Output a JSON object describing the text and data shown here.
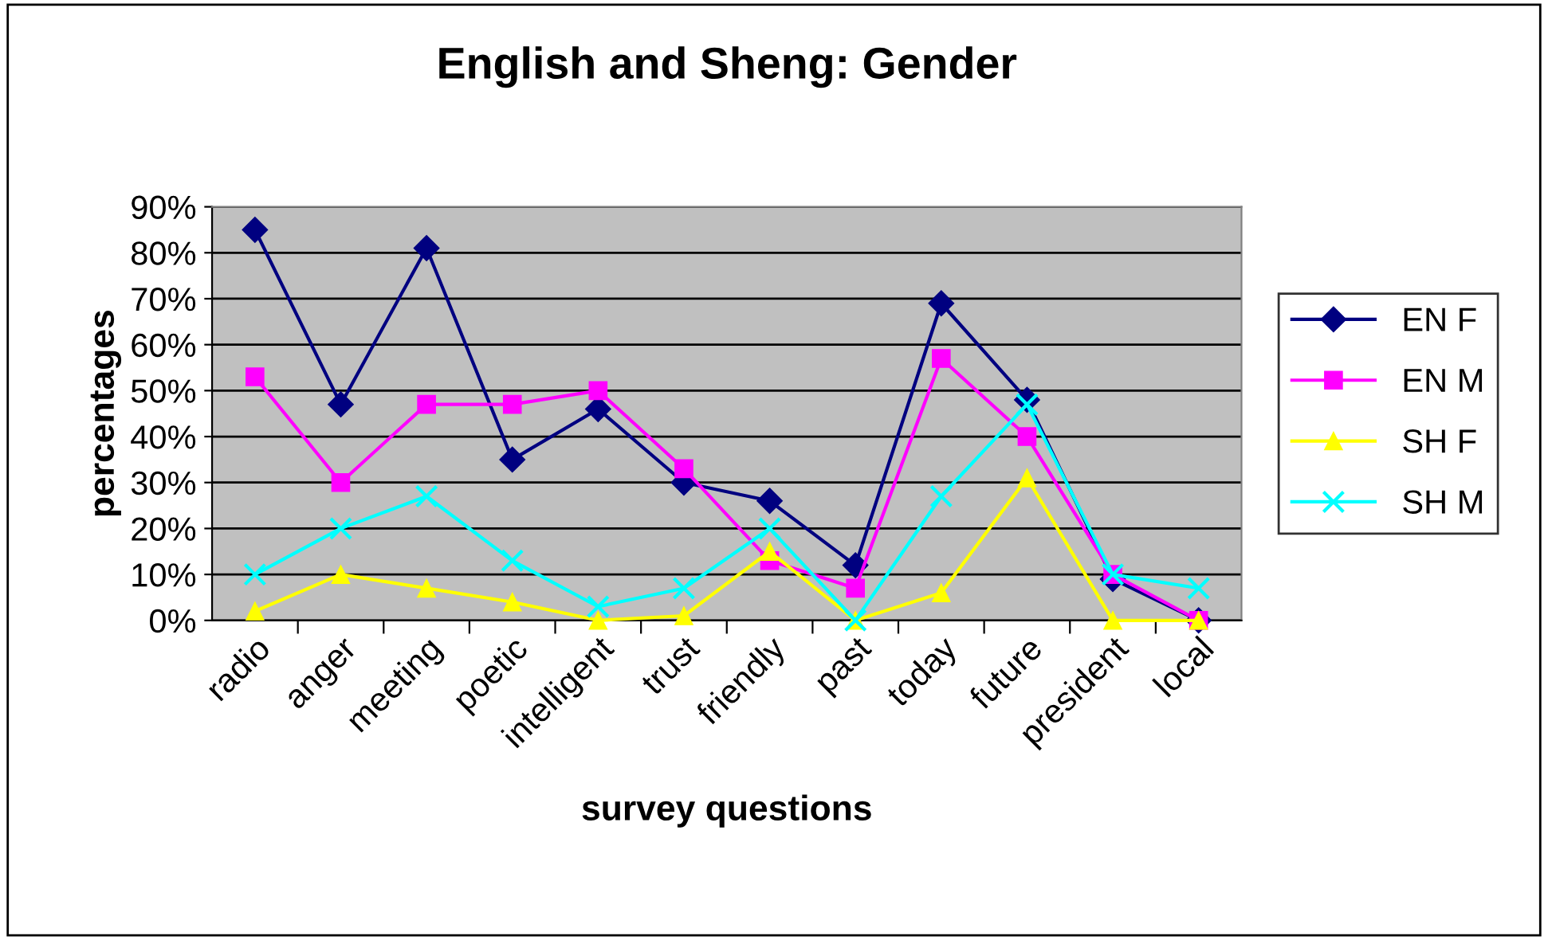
{
  "chart_data": {
    "type": "line",
    "title": "English and Sheng: Gender",
    "xlabel": "survey questions",
    "ylabel": "percentages",
    "categories": [
      "radio",
      "anger",
      "meeting",
      "poetic",
      "intelligent",
      "trust",
      "friendly",
      "past",
      "today",
      "future",
      "president",
      "local"
    ],
    "series": [
      {
        "name": "EN F",
        "color": "#000080",
        "marker": "diamond",
        "values": [
          85,
          47,
          81,
          35,
          46,
          30,
          26,
          12,
          69,
          48,
          9,
          0
        ]
      },
      {
        "name": "EN M",
        "color": "#ff00ff",
        "marker": "square",
        "values": [
          53,
          30,
          47,
          47,
          50,
          33,
          13,
          7,
          57,
          40,
          10,
          0
        ]
      },
      {
        "name": "SH F",
        "color": "#ffff00",
        "marker": "triangle",
        "values": [
          2,
          10,
          7,
          4,
          0,
          1,
          15,
          0,
          6,
          31,
          0,
          0
        ]
      },
      {
        "name": "SH M",
        "color": "#00ffff",
        "marker": "cross",
        "values": [
          10,
          20,
          27,
          13,
          3,
          7,
          20,
          0,
          27,
          47,
          10,
          7
        ]
      }
    ],
    "ylim": [
      0,
      90
    ],
    "yticks": [
      {
        "value": 0,
        "label": "0%"
      },
      {
        "value": 10,
        "label": "10%"
      },
      {
        "value": 20,
        "label": "20%"
      },
      {
        "value": 30,
        "label": "30%"
      },
      {
        "value": 40,
        "label": "40%"
      },
      {
        "value": 50,
        "label": "50%"
      },
      {
        "value": 60,
        "label": "60%"
      },
      {
        "value": 70,
        "label": "70%"
      },
      {
        "value": 80,
        "label": "80%"
      },
      {
        "value": 90,
        "label": "90%"
      }
    ],
    "grid": "y",
    "legend": "right",
    "line_style": "solid"
  }
}
